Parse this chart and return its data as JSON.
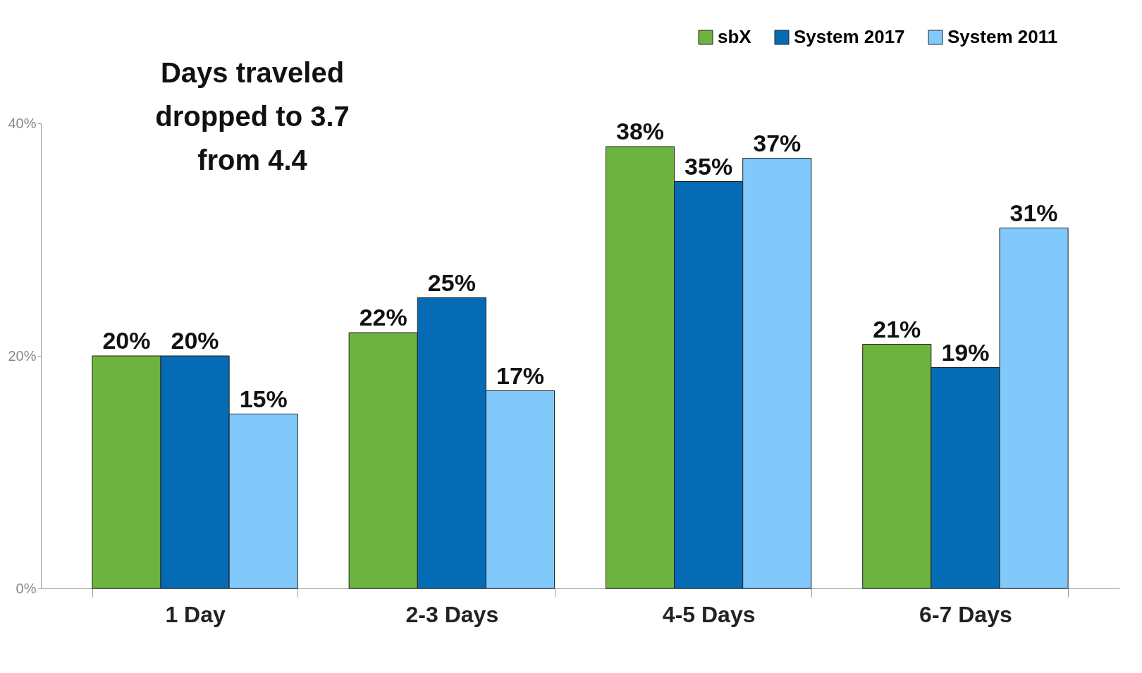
{
  "chart_data": {
    "type": "bar",
    "categories": [
      "1 Day",
      "2-3 Days",
      "4-5 Days",
      "6-7 Days"
    ],
    "series": [
      {
        "name": "sbX",
        "color": "#6db33f",
        "values": [
          20,
          22,
          38,
          21
        ],
        "value_labels": [
          "20%",
          "22%",
          "38%",
          "21%"
        ]
      },
      {
        "name": "System 2017",
        "color": "#066bb5",
        "values": [
          20,
          25,
          35,
          19
        ],
        "value_labels": [
          "20%",
          "25%",
          "35%",
          "19%"
        ]
      },
      {
        "name": "System 2011",
        "color": "#82c9fb",
        "values": [
          15,
          17,
          37,
          31
        ],
        "value_labels": [
          "15%",
          "17%",
          "37%",
          "31%"
        ]
      }
    ],
    "ylim": [
      0,
      40
    ],
    "yticks": [
      {
        "value": 0,
        "label": "0%"
      },
      {
        "value": 20,
        "label": "20%"
      },
      {
        "value": 40,
        "label": "40%"
      }
    ],
    "annotations": [
      "Days traveled\ndropped to 3.7\nfrom 4.4"
    ],
    "legend": "top right",
    "grid": false
  }
}
